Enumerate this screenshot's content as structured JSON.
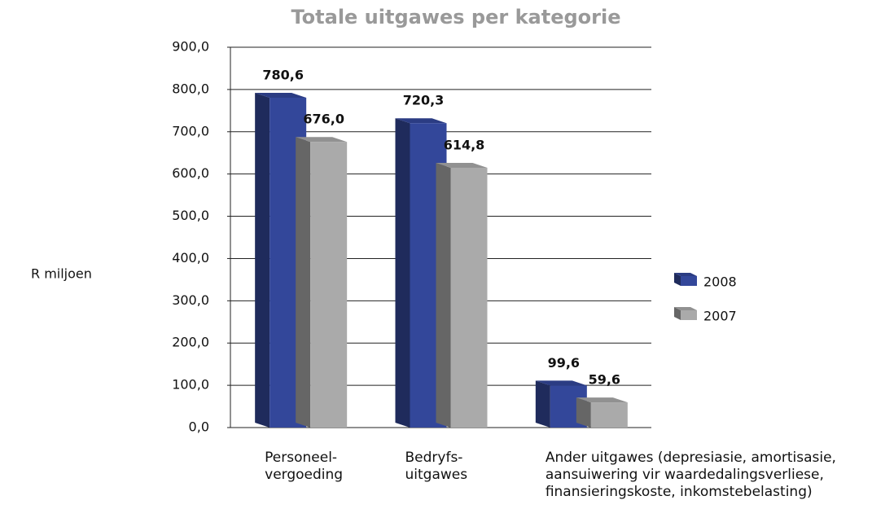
{
  "chart_data": {
    "type": "bar3d",
    "title": "Totale uitgawes per kategorie",
    "y_label": "R miljoen",
    "categories": [
      "Personeel-\nvergoeding",
      "Bedryfs-\nuitgawes",
      "Ander uitgawes (depresiasie, amortisasie,\naansuiwering vir waardedalingsverliese,\nfinansieringskoste, inkomstebelasting)"
    ],
    "series": [
      {
        "name": "2008",
        "color": "#33479a",
        "values": [
          780.6,
          720.3,
          99.6
        ],
        "value_labels": [
          "780,6",
          "720,3",
          "99,6"
        ]
      },
      {
        "name": "2007",
        "color": "#aaaaaa",
        "values": [
          676.0,
          614.8,
          59.6
        ],
        "value_labels": [
          "676,0",
          "614,8",
          "59,6"
        ]
      }
    ],
    "ylim": [
      0,
      900
    ],
    "yticks": [
      {
        "value": 0,
        "label": "0,0"
      },
      {
        "value": 100,
        "label": "100,0"
      },
      {
        "value": 200,
        "label": "200,0"
      },
      {
        "value": 300,
        "label": "300,0"
      },
      {
        "value": 400,
        "label": "400,0"
      },
      {
        "value": 500,
        "label": "500,0"
      },
      {
        "value": 600,
        "label": "600,0"
      },
      {
        "value": 700,
        "label": "700,0"
      },
      {
        "value": 800,
        "label": "800,0"
      },
      {
        "value": 900,
        "label": "900,0"
      }
    ],
    "grid": true,
    "legend": "right"
  }
}
